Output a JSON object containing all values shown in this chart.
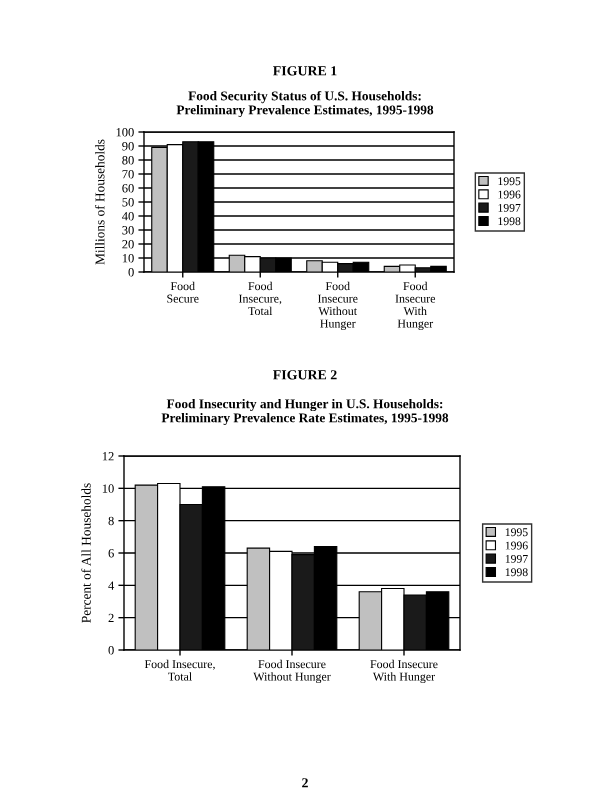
{
  "chart_data": [
    {
      "type": "bar",
      "title": "Food Security Status of U.S. Households:\nPreliminary Prevalence Estimates, 1995-1998",
      "ylabel": "Millions of Households",
      "annotations": [
        "FIGURE 1"
      ],
      "categories": [
        "Food\nSecure",
        "Food\nInsecure,\nTotal",
        "Food\nInsecure\nWithout\nHunger",
        "Food\nInsecure\nWith\nHunger"
      ],
      "series": [
        {
          "name": "1995",
          "color": "#c0c0c0",
          "values": [
            89,
            12,
            8,
            4
          ]
        },
        {
          "name": "1996",
          "color": "#ffffff",
          "values": [
            91,
            11,
            7,
            5
          ]
        },
        {
          "name": "1997",
          "color": "#1a1a1a",
          "values": [
            93,
            10,
            6,
            3
          ]
        },
        {
          "name": "1998",
          "color": "#000000",
          "values": [
            93,
            10,
            7,
            4
          ]
        }
      ],
      "ylim": [
        0,
        100
      ],
      "yticks": [
        0,
        10,
        20,
        30,
        40,
        50,
        60,
        70,
        80,
        90,
        100
      ],
      "grid": "y",
      "legend": "right"
    },
    {
      "type": "bar",
      "title": "Food Insecurity and Hunger in U.S. Households:\nPreliminary Prevalence Rate Estimates, 1995-1998",
      "ylabel": "Percent of All Households",
      "annotations": [
        "FIGURE 2",
        "2"
      ],
      "categories": [
        "Food Insecure,\nTotal",
        "Food Insecure\nWithout Hunger",
        "Food Insecure\nWith Hunger"
      ],
      "series": [
        {
          "name": "1995",
          "color": "#c0c0c0",
          "values": [
            10.2,
            6.3,
            3.6
          ]
        },
        {
          "name": "1996",
          "color": "#ffffff",
          "values": [
            10.3,
            6.1,
            3.8
          ]
        },
        {
          "name": "1997",
          "color": "#1a1a1a",
          "values": [
            9.0,
            5.9,
            3.4
          ]
        },
        {
          "name": "1998",
          "color": "#000000",
          "values": [
            10.1,
            6.4,
            3.6
          ]
        }
      ],
      "ylim": [
        0,
        12
      ],
      "yticks": [
        0,
        2,
        4,
        6,
        8,
        10,
        12
      ],
      "grid": "y",
      "legend": "right"
    }
  ]
}
